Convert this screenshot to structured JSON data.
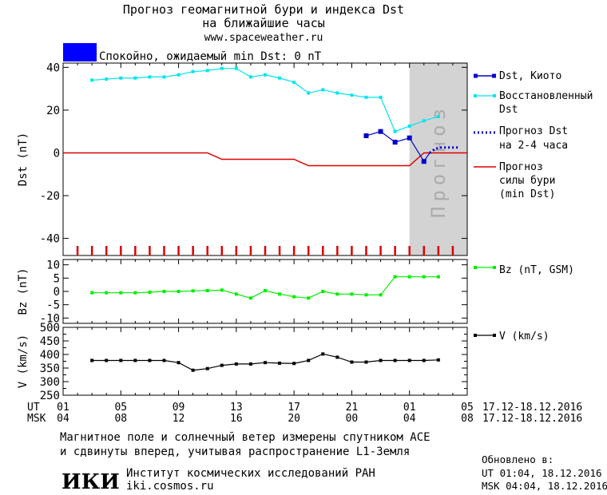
{
  "header": {
    "title_line1": "Прогноз геомагнитной бури и индекса Dst",
    "title_line2": "на ближайшие часы",
    "url": "www.spaceweather.ru"
  },
  "status": {
    "text": "Спокойно, ожидаемый min Dst: 0 nT",
    "box_color": "#0000ff"
  },
  "forecast_label": "Прогноз",
  "colors": {
    "dst_kyoto": "#0000cc",
    "dst_restored": "#00e5ee",
    "dst_forecast": "#0000cc",
    "storm_forecast": "#dd0000",
    "bz": "#00ee00",
    "v": "#000000",
    "forecast_region": "#d3d3d3",
    "forecast_text": "#ababab"
  },
  "chart_data": [
    {
      "type": "line",
      "id": "dst",
      "ylabel": "Dst (nT)",
      "xlim": [
        1,
        29
      ],
      "ylim": [
        -48,
        42
      ],
      "yticks": [
        40,
        20,
        0,
        -20,
        -40
      ],
      "forecast_region": [
        25,
        29
      ],
      "series": [
        {
          "name": "Dst, Киото",
          "key": "kyoto",
          "marker": "square",
          "x": [
            22,
            23,
            24,
            25,
            26,
            26.4
          ],
          "y": [
            8,
            10,
            5,
            7,
            -4,
            0
          ]
        },
        {
          "name": "Восстановленный Dst",
          "key": "restored",
          "marker": "square",
          "x": [
            3,
            4,
            5,
            6,
            7,
            8,
            9,
            10,
            11,
            12,
            13,
            14,
            15,
            16,
            17,
            18,
            19,
            20,
            21,
            22,
            23,
            24,
            25,
            26,
            27
          ],
          "y": [
            34,
            34.5,
            35,
            35,
            35.5,
            35.5,
            36.5,
            38,
            38.5,
            39.5,
            39.5,
            35.5,
            36.5,
            35,
            33,
            28,
            29.5,
            28,
            27,
            26,
            26,
            10,
            12.5,
            15,
            17
          ]
        },
        {
          "name": "Прогноз Dst на 2-4 часа",
          "key": "dst_forecast",
          "style": "dotted",
          "x": [
            26.4,
            26.8,
            27.2,
            27.6,
            28,
            28.4
          ],
          "y": [
            0,
            2,
            2.5,
            2.5,
            2.5,
            2.5
          ]
        },
        {
          "name": "Прогноз силы бури (min Dst)",
          "key": "storm",
          "style": "line",
          "x": [
            1,
            11,
            12,
            17,
            18,
            25,
            26,
            29
          ],
          "y": [
            0,
            0,
            -3,
            -3,
            -6,
            -6,
            0,
            0
          ]
        }
      ],
      "event_ticks": [
        2,
        3,
        4,
        5,
        6,
        7,
        8,
        9,
        10,
        11,
        12,
        13,
        14,
        15,
        16,
        17,
        18,
        19,
        20,
        21,
        22,
        23,
        24,
        25,
        26,
        27,
        28
      ]
    },
    {
      "type": "line",
      "id": "bz",
      "ylabel": "Bz (nT)",
      "xlim": [
        1,
        29
      ],
      "ylim": [
        -12,
        12
      ],
      "yticks": [
        10,
        5,
        0,
        -5,
        -10
      ],
      "series": [
        {
          "name": "Bz (nT, GSM)",
          "marker": "square",
          "x": [
            3,
            4,
            5,
            6,
            7,
            8,
            9,
            10,
            11,
            12,
            13,
            14,
            15,
            16,
            17,
            18,
            19,
            20,
            21,
            22,
            23,
            24,
            25,
            26,
            27
          ],
          "y": [
            -0.5,
            -0.5,
            -0.5,
            -0.5,
            -0.3,
            0,
            0,
            0.2,
            0.3,
            0.5,
            -1,
            -2.5,
            0.3,
            -1,
            -2,
            -2.5,
            0,
            -1,
            -1,
            -1.3,
            -1.3,
            5.5,
            5.5,
            5.5,
            5.5
          ]
        }
      ]
    },
    {
      "type": "line",
      "id": "v",
      "ylabel": "V (km/s)",
      "xlim": [
        1,
        29
      ],
      "ylim": [
        250,
        500
      ],
      "yticks": [
        500,
        450,
        400,
        350,
        300,
        250
      ],
      "minor_yticks": [
        475,
        425,
        375,
        325,
        275
      ],
      "series": [
        {
          "name": "V (km/s)",
          "marker": "square",
          "x": [
            3,
            4,
            5,
            6,
            7,
            8,
            9,
            10,
            11,
            12,
            13,
            14,
            15,
            16,
            17,
            18,
            19,
            20,
            21,
            22,
            23,
            24,
            25,
            26,
            27
          ],
          "y": [
            378,
            378,
            378,
            378,
            378,
            378,
            370,
            342,
            348,
            360,
            365,
            365,
            370,
            368,
            367,
            378,
            402,
            390,
            372,
            372,
            378,
            378,
            378,
            378,
            380
          ]
        }
      ]
    }
  ],
  "time_axis": {
    "ut_label": "UT",
    "msk_label": "MSK",
    "ticks_x": [
      1,
      5,
      9,
      13,
      17,
      21,
      25,
      29
    ],
    "ut_ticks": [
      "01",
      "05",
      "09",
      "13",
      "17",
      "21",
      "01",
      "05"
    ],
    "msk_ticks": [
      "04",
      "08",
      "12",
      "16",
      "20",
      "00",
      "04",
      "08"
    ],
    "ut_range": "17.12-18.12.2016",
    "msk_range": "17.12-18.12.2016"
  },
  "footer": {
    "note_line1": "Магнитное поле и солнечный ветер измерены спутником ACE",
    "note_line2": "и сдвинуты вперед, учитывая распространение L1-Земля",
    "logo_text": "ИКИ",
    "institute": "Институт космических исследований РАН",
    "site": "iki.cosmos.ru",
    "updated_label": "Обновлено в:",
    "updated_ut": "UT  01:04, 18.12.2016",
    "updated_msk": "MSK 04:04, 18.12.2016"
  }
}
